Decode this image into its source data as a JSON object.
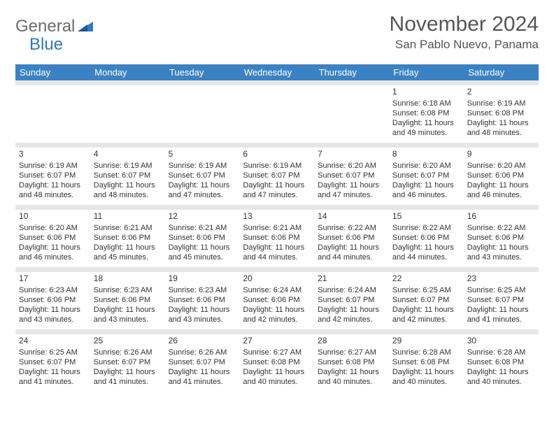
{
  "logo": {
    "general": "General",
    "blue": "Blue"
  },
  "title": "November 2024",
  "location": "San Pablo Nuevo, Panama",
  "colors": {
    "header_bg": "#3a82c4",
    "header_text": "#ffffff",
    "spacer_bg": "#e6e6e6",
    "text": "#333333",
    "logo_gray": "#6b6b6b",
    "logo_blue": "#2a7bbf"
  },
  "day_headers": [
    "Sunday",
    "Monday",
    "Tuesday",
    "Wednesday",
    "Thursday",
    "Friday",
    "Saturday"
  ],
  "weeks": [
    [
      null,
      null,
      null,
      null,
      null,
      {
        "n": "1",
        "sr": "Sunrise: 6:18 AM",
        "ss": "Sunset: 6:08 PM",
        "dl": "Daylight: 11 hours and 49 minutes."
      },
      {
        "n": "2",
        "sr": "Sunrise: 6:19 AM",
        "ss": "Sunset: 6:08 PM",
        "dl": "Daylight: 11 hours and 48 minutes."
      }
    ],
    [
      {
        "n": "3",
        "sr": "Sunrise: 6:19 AM",
        "ss": "Sunset: 6:07 PM",
        "dl": "Daylight: 11 hours and 48 minutes."
      },
      {
        "n": "4",
        "sr": "Sunrise: 6:19 AM",
        "ss": "Sunset: 6:07 PM",
        "dl": "Daylight: 11 hours and 48 minutes."
      },
      {
        "n": "5",
        "sr": "Sunrise: 6:19 AM",
        "ss": "Sunset: 6:07 PM",
        "dl": "Daylight: 11 hours and 47 minutes."
      },
      {
        "n": "6",
        "sr": "Sunrise: 6:19 AM",
        "ss": "Sunset: 6:07 PM",
        "dl": "Daylight: 11 hours and 47 minutes."
      },
      {
        "n": "7",
        "sr": "Sunrise: 6:20 AM",
        "ss": "Sunset: 6:07 PM",
        "dl": "Daylight: 11 hours and 47 minutes."
      },
      {
        "n": "8",
        "sr": "Sunrise: 6:20 AM",
        "ss": "Sunset: 6:07 PM",
        "dl": "Daylight: 11 hours and 46 minutes."
      },
      {
        "n": "9",
        "sr": "Sunrise: 6:20 AM",
        "ss": "Sunset: 6:06 PM",
        "dl": "Daylight: 11 hours and 46 minutes."
      }
    ],
    [
      {
        "n": "10",
        "sr": "Sunrise: 6:20 AM",
        "ss": "Sunset: 6:06 PM",
        "dl": "Daylight: 11 hours and 46 minutes."
      },
      {
        "n": "11",
        "sr": "Sunrise: 6:21 AM",
        "ss": "Sunset: 6:06 PM",
        "dl": "Daylight: 11 hours and 45 minutes."
      },
      {
        "n": "12",
        "sr": "Sunrise: 6:21 AM",
        "ss": "Sunset: 6:06 PM",
        "dl": "Daylight: 11 hours and 45 minutes."
      },
      {
        "n": "13",
        "sr": "Sunrise: 6:21 AM",
        "ss": "Sunset: 6:06 PM",
        "dl": "Daylight: 11 hours and 44 minutes."
      },
      {
        "n": "14",
        "sr": "Sunrise: 6:22 AM",
        "ss": "Sunset: 6:06 PM",
        "dl": "Daylight: 11 hours and 44 minutes."
      },
      {
        "n": "15",
        "sr": "Sunrise: 6:22 AM",
        "ss": "Sunset: 6:06 PM",
        "dl": "Daylight: 11 hours and 44 minutes."
      },
      {
        "n": "16",
        "sr": "Sunrise: 6:22 AM",
        "ss": "Sunset: 6:06 PM",
        "dl": "Daylight: 11 hours and 43 minutes."
      }
    ],
    [
      {
        "n": "17",
        "sr": "Sunrise: 6:23 AM",
        "ss": "Sunset: 6:06 PM",
        "dl": "Daylight: 11 hours and 43 minutes."
      },
      {
        "n": "18",
        "sr": "Sunrise: 6:23 AM",
        "ss": "Sunset: 6:06 PM",
        "dl": "Daylight: 11 hours and 43 minutes."
      },
      {
        "n": "19",
        "sr": "Sunrise: 6:23 AM",
        "ss": "Sunset: 6:06 PM",
        "dl": "Daylight: 11 hours and 43 minutes."
      },
      {
        "n": "20",
        "sr": "Sunrise: 6:24 AM",
        "ss": "Sunset: 6:06 PM",
        "dl": "Daylight: 11 hours and 42 minutes."
      },
      {
        "n": "21",
        "sr": "Sunrise: 6:24 AM",
        "ss": "Sunset: 6:07 PM",
        "dl": "Daylight: 11 hours and 42 minutes."
      },
      {
        "n": "22",
        "sr": "Sunrise: 6:25 AM",
        "ss": "Sunset: 6:07 PM",
        "dl": "Daylight: 11 hours and 42 minutes."
      },
      {
        "n": "23",
        "sr": "Sunrise: 6:25 AM",
        "ss": "Sunset: 6:07 PM",
        "dl": "Daylight: 11 hours and 41 minutes."
      }
    ],
    [
      {
        "n": "24",
        "sr": "Sunrise: 6:25 AM",
        "ss": "Sunset: 6:07 PM",
        "dl": "Daylight: 11 hours and 41 minutes."
      },
      {
        "n": "25",
        "sr": "Sunrise: 6:26 AM",
        "ss": "Sunset: 6:07 PM",
        "dl": "Daylight: 11 hours and 41 minutes."
      },
      {
        "n": "26",
        "sr": "Sunrise: 6:26 AM",
        "ss": "Sunset: 6:07 PM",
        "dl": "Daylight: 11 hours and 41 minutes."
      },
      {
        "n": "27",
        "sr": "Sunrise: 6:27 AM",
        "ss": "Sunset: 6:08 PM",
        "dl": "Daylight: 11 hours and 40 minutes."
      },
      {
        "n": "28",
        "sr": "Sunrise: 6:27 AM",
        "ss": "Sunset: 6:08 PM",
        "dl": "Daylight: 11 hours and 40 minutes."
      },
      {
        "n": "29",
        "sr": "Sunrise: 6:28 AM",
        "ss": "Sunset: 6:08 PM",
        "dl": "Daylight: 11 hours and 40 minutes."
      },
      {
        "n": "30",
        "sr": "Sunrise: 6:28 AM",
        "ss": "Sunset: 6:08 PM",
        "dl": "Daylight: 11 hours and 40 minutes."
      }
    ]
  ]
}
